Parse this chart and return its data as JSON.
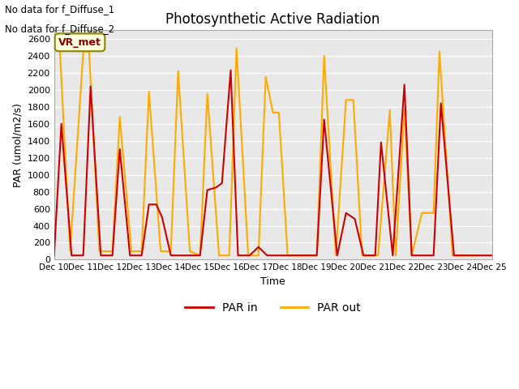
{
  "title": "Photosynthetic Active Radiation",
  "xlabel": "Time",
  "ylabel": "PAR (umol/m2/s)",
  "annotation_line1": "No data for f_Diffuse_1",
  "annotation_line2": "No data for f_Diffuse_2",
  "vr_met_label": "VR_met",
  "legend_entries": [
    "PAR in",
    "PAR out"
  ],
  "par_in_color": "#cc0000",
  "par_out_color": "#ffaa00",
  "plot_bg_color": "#e8e8e8",
  "fig_bg_color": "#ffffff",
  "ylim": [
    0,
    2700
  ],
  "yticks": [
    0,
    200,
    400,
    600,
    800,
    1000,
    1200,
    1400,
    1600,
    1800,
    2000,
    2200,
    2400,
    2600
  ],
  "x_ticks_labels": [
    "Dec 10",
    "Dec 11",
    "Dec 12",
    "Dec 13",
    "Dec 14",
    "Dec 15",
    "Dec 16",
    "Dec 17",
    "Dec 18",
    "Dec 19",
    "Dec 20",
    "Dec 21",
    "Dec 22",
    "Dec 23",
    "Dec 24",
    "Dec 25"
  ],
  "par_in_x": [
    10.0,
    10.25,
    10.6,
    11.0,
    11.25,
    11.6,
    12.0,
    12.25,
    12.6,
    13.0,
    13.25,
    13.5,
    13.7,
    14.0,
    14.5,
    15.0,
    15.25,
    15.55,
    15.75,
    16.05,
    16.3,
    16.7,
    17.0,
    17.3,
    18.0,
    18.5,
    19.0,
    19.25,
    19.7,
    20.0,
    20.3,
    20.6,
    21.0,
    21.2,
    21.6,
    22.0,
    22.25,
    22.65,
    23.0,
    23.25,
    23.7,
    24.0,
    24.3,
    25.0
  ],
  "par_in_y": [
    50,
    1600,
    50,
    50,
    2040,
    50,
    50,
    1300,
    50,
    50,
    650,
    650,
    500,
    50,
    50,
    50,
    820,
    850,
    900,
    2230,
    50,
    50,
    150,
    50,
    50,
    50,
    50,
    1650,
    50,
    550,
    480,
    50,
    50,
    1380,
    50,
    2060,
    50,
    50,
    50,
    1840,
    50,
    50,
    50,
    50
  ],
  "par_out_x": [
    10.0,
    10.2,
    10.55,
    11.0,
    11.2,
    11.55,
    12.0,
    12.25,
    12.65,
    13.0,
    13.25,
    13.65,
    14.0,
    14.25,
    14.65,
    15.0,
    15.25,
    15.65,
    16.0,
    16.25,
    16.65,
    17.0,
    17.25,
    17.5,
    17.7,
    18.0,
    18.5,
    19.0,
    19.25,
    19.65,
    20.0,
    20.25,
    20.55,
    21.0,
    21.1,
    21.5,
    21.7,
    22.0,
    22.25,
    22.6,
    23.0,
    23.2,
    23.65,
    24.0,
    24.5
  ],
  "par_out_y": [
    2470,
    2470,
    100,
    2450,
    2450,
    100,
    100,
    1680,
    100,
    100,
    1980,
    100,
    100,
    2220,
    100,
    50,
    1950,
    50,
    50,
    2490,
    50,
    50,
    2150,
    1730,
    1730,
    50,
    50,
    50,
    2400,
    50,
    1880,
    1880,
    50,
    50,
    50,
    1760,
    50,
    1760,
    50,
    550,
    550,
    2450,
    50,
    50,
    50
  ]
}
